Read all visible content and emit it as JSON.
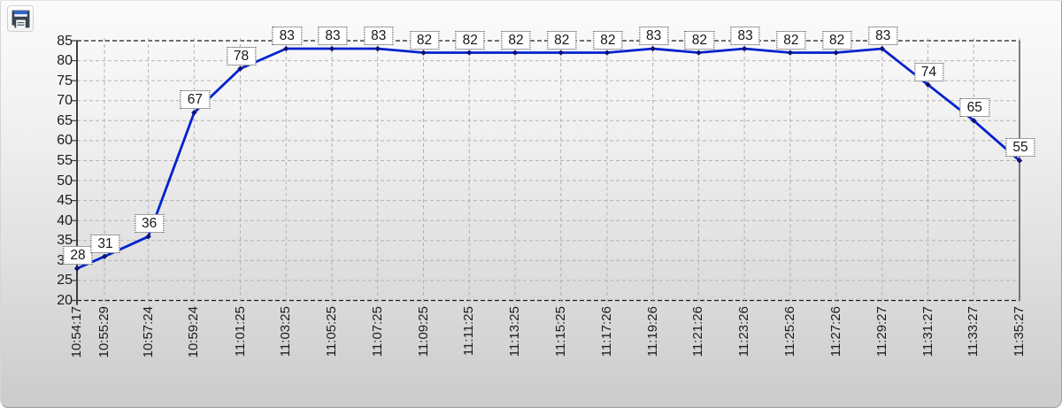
{
  "toolbar": {
    "save_icon": "floppy-disk-save-icon"
  },
  "chart_data": {
    "type": "line",
    "title": "",
    "xlabel": "",
    "ylabel": "",
    "x_axis_type": "time",
    "x": [
      "10:54:17",
      "10:55:29",
      "10:57:24",
      "10:59:24",
      "11:01:25",
      "11:03:25",
      "11:05:25",
      "11:07:25",
      "11:09:25",
      "11:11:25",
      "11:13:25",
      "11:15:25",
      "11:17:26",
      "11:19:26",
      "11:21:26",
      "11:23:26",
      "11:25:26",
      "11:27:26",
      "11:29:27",
      "11:31:27",
      "11:33:27",
      "11:35:27"
    ],
    "values": [
      28,
      31,
      36,
      67,
      78,
      83,
      83,
      83,
      82,
      82,
      82,
      82,
      82,
      83,
      82,
      83,
      82,
      82,
      83,
      74,
      65,
      55
    ],
    "data_labels": true,
    "ylim": [
      20,
      85
    ],
    "ytick_step": 5,
    "yticks": [
      20,
      25,
      30,
      35,
      40,
      45,
      50,
      55,
      60,
      65,
      70,
      75,
      80,
      85
    ],
    "grid": true,
    "legend": false,
    "colors": {
      "line": "#0021cf",
      "marker": "#0c1172",
      "grid": "#b3b3b3",
      "frame_dashed": "#1c1c1c",
      "axis": "#3f3f3f",
      "tick": "#8a8a8a",
      "label_box_bg": "#ffffff",
      "label_box_border": "#3c3c3c",
      "text": "#1b1b1b"
    }
  }
}
